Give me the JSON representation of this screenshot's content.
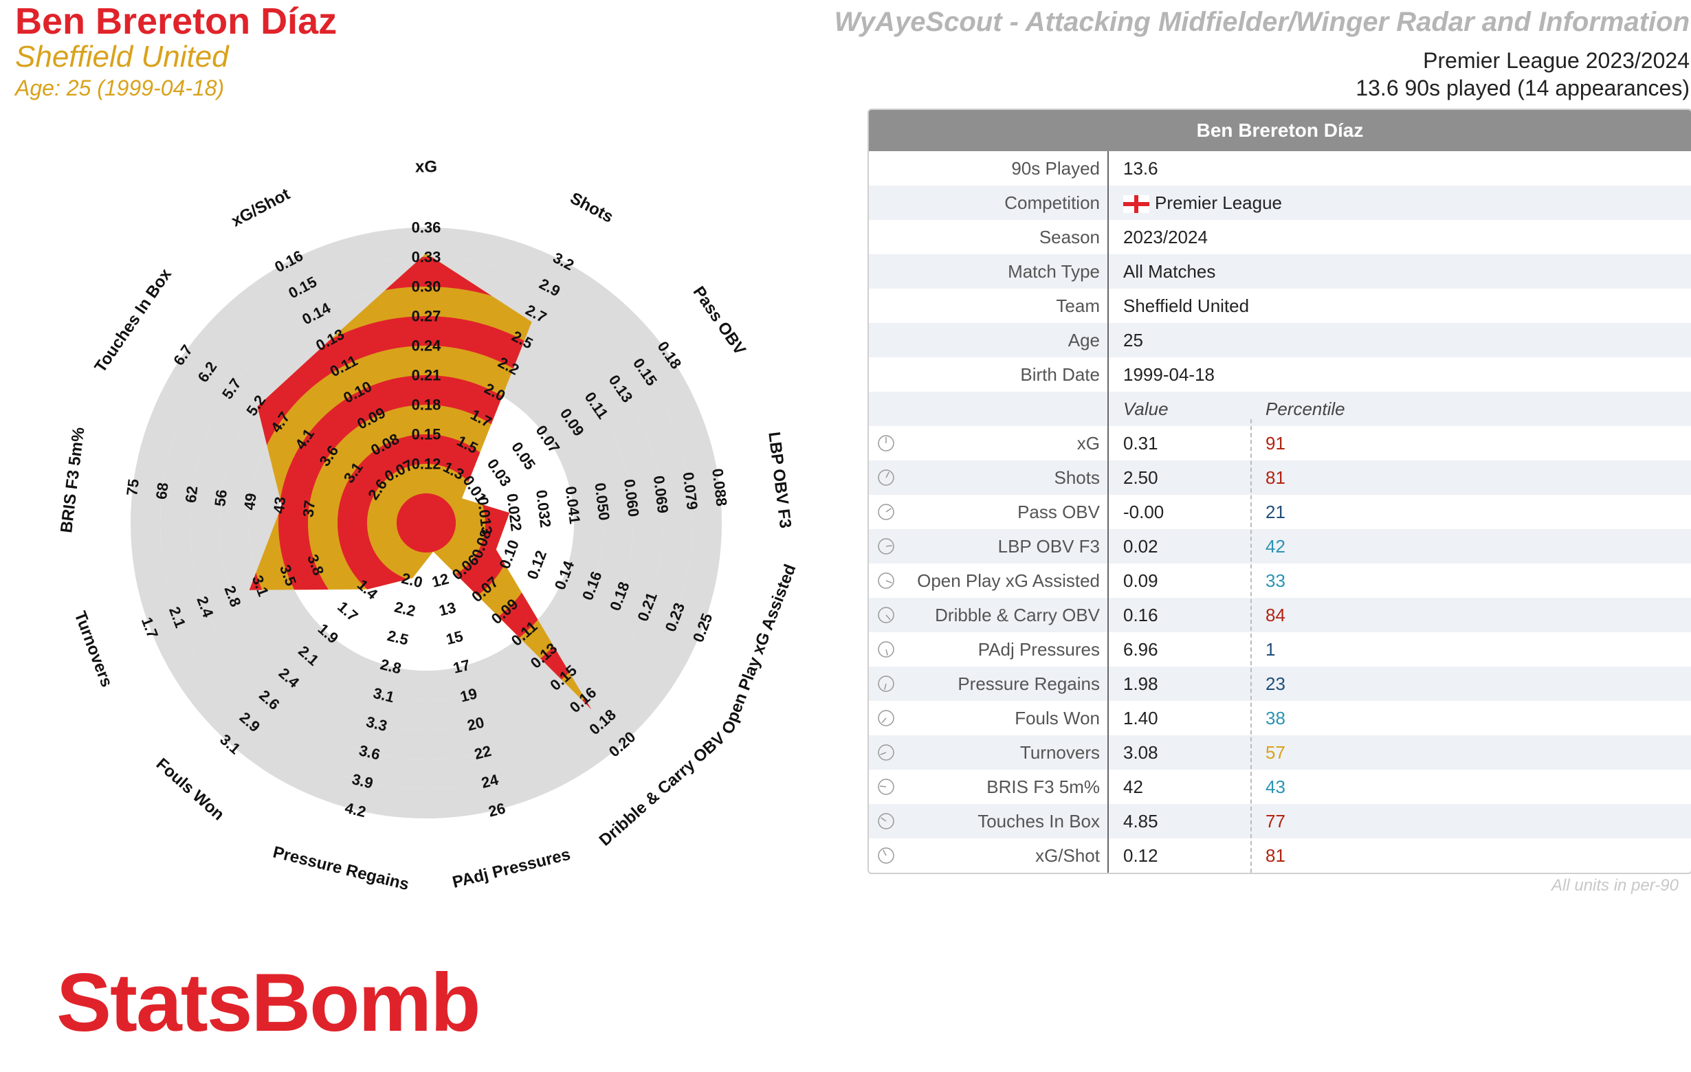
{
  "player": {
    "name": "Ben Brereton Díaz",
    "team": "Sheffield United",
    "age_line": "Age: 25 (1999-04-18)"
  },
  "header": {
    "title": "WyAyeScout - Attacking Midfielder/Winger Radar and Information",
    "competition": "Premier League 2023/2024",
    "played": "13.6 90s played (14 appearances)"
  },
  "info_table": {
    "header": "Ben Brereton Díaz",
    "rows": [
      {
        "label": "90s Played",
        "value": "13.6"
      },
      {
        "label": "Competition",
        "value": "Premier League"
      },
      {
        "label": "Season",
        "value": "2023/2024"
      },
      {
        "label": "Match Type",
        "value": "All Matches"
      },
      {
        "label": "Team",
        "value": "Sheffield United"
      },
      {
        "label": "Age",
        "value": "25"
      },
      {
        "label": "Birth Date",
        "value": "1999-04-18"
      }
    ],
    "value_header": "Value",
    "percentile_header": "Percentile",
    "metrics": [
      {
        "label": "xG",
        "value": "0.31",
        "percentile": "91",
        "color": "#b22412"
      },
      {
        "label": "Shots",
        "value": "2.50",
        "percentile": "81",
        "color": "#b22412"
      },
      {
        "label": "Pass OBV",
        "value": "-0.00",
        "percentile": "21",
        "color": "#1f4e79"
      },
      {
        "label": "LBP OBV F3",
        "value": "0.02",
        "percentile": "42",
        "color": "#2a93b5"
      },
      {
        "label": "Open Play xG Assisted",
        "value": "0.09",
        "percentile": "33",
        "color": "#2a93b5"
      },
      {
        "label": "Dribble & Carry OBV",
        "value": "0.16",
        "percentile": "84",
        "color": "#b22412"
      },
      {
        "label": "PAdj Pressures",
        "value": "6.96",
        "percentile": "1",
        "color": "#1f4e79"
      },
      {
        "label": "Pressure Regains",
        "value": "1.98",
        "percentile": "23",
        "color": "#1f4e79"
      },
      {
        "label": "Fouls Won",
        "value": "1.40",
        "percentile": "38",
        "color": "#2a93b5"
      },
      {
        "label": "Turnovers",
        "value": "3.08",
        "percentile": "57",
        "color": "#d9a21b"
      },
      {
        "label": "BRIS F3 5m%",
        "value": "42",
        "percentile": "43",
        "color": "#2a93b5"
      },
      {
        "label": "Touches In Box",
        "value": "4.85",
        "percentile": "77",
        "color": "#b22412"
      },
      {
        "label": "xG/Shot",
        "value": "0.12",
        "percentile": "81",
        "color": "#b22412"
      }
    ],
    "footnote": "All units in per-90"
  },
  "chart_data": {
    "type": "radar",
    "colors": {
      "red": "#e0232a",
      "gold": "#d9a21b",
      "ring": "#dcdcdc"
    },
    "axes": [
      {
        "name": "xG",
        "value": 0.31,
        "ticks": [
          "0.12",
          "0.15",
          "0.18",
          "0.21",
          "0.24",
          "0.27",
          "0.30",
          "0.33",
          "0.36"
        ]
      },
      {
        "name": "Shots",
        "value": 2.5,
        "ticks": [
          "1.3",
          "1.5",
          "1.7",
          "2.0",
          "2.2",
          "2.5",
          "2.7",
          "2.9",
          "3.2"
        ]
      },
      {
        "name": "Pass OBV",
        "value": -0.0,
        "ticks": [
          "0.01",
          "0.03",
          "0.05",
          "0.07",
          "0.09",
          "0.11",
          "0.13",
          "0.15",
          "0.18"
        ]
      },
      {
        "name": "LBP OBV F3",
        "value": 0.02,
        "ticks": [
          "0.013",
          "0.022",
          "0.032",
          "0.041",
          "0.050",
          "0.060",
          "0.069",
          "0.079",
          "0.088"
        ]
      },
      {
        "name": "Open Play xG Assisted",
        "value": 0.09,
        "ticks": [
          "0.08",
          "0.10",
          "0.12",
          "0.14",
          "0.16",
          "0.18",
          "0.21",
          "0.23",
          "0.25"
        ]
      },
      {
        "name": "Dribble & Carry OBV",
        "value": 0.16,
        "ticks": [
          "0.06",
          "0.07",
          "0.09",
          "0.11",
          "0.13",
          "0.15",
          "0.16",
          "0.18",
          "0.20"
        ]
      },
      {
        "name": "PAdj Pressures",
        "value": 6.96,
        "ticks": [
          "12",
          "13",
          "15",
          "17",
          "19",
          "20",
          "22",
          "24",
          "26"
        ]
      },
      {
        "name": "Pressure Regains",
        "value": 1.98,
        "ticks": [
          "2.0",
          "2.2",
          "2.5",
          "2.8",
          "3.1",
          "3.3",
          "3.6",
          "3.9",
          "4.2"
        ]
      },
      {
        "name": "Fouls Won",
        "value": 1.4,
        "ticks": [
          "1.4",
          "1.7",
          "1.9",
          "2.1",
          "2.4",
          "2.6",
          "2.9",
          "3.1"
        ]
      },
      {
        "name": "Turnovers",
        "value": 3.08,
        "ticks": [
          "3.8",
          "3.5",
          "3.1",
          "2.8",
          "2.4",
          "2.1",
          "1.7"
        ]
      },
      {
        "name": "BRIS F3 5m%",
        "value": 42,
        "ticks": [
          "37",
          "43",
          "49",
          "56",
          "62",
          "68",
          "75"
        ]
      },
      {
        "name": "Touches In Box",
        "value": 4.85,
        "ticks": [
          "2.6",
          "3.1",
          "3.6",
          "4.1",
          "4.7",
          "5.2",
          "5.7",
          "6.2",
          "6.7"
        ]
      },
      {
        "name": "xG/Shot",
        "value": 0.12,
        "ticks": [
          "0.07",
          "0.08",
          "0.09",
          "0.10",
          "0.11",
          "0.13",
          "0.14",
          "0.15",
          "0.16"
        ]
      }
    ]
  },
  "logo": {
    "text": "StatsBomb"
  }
}
